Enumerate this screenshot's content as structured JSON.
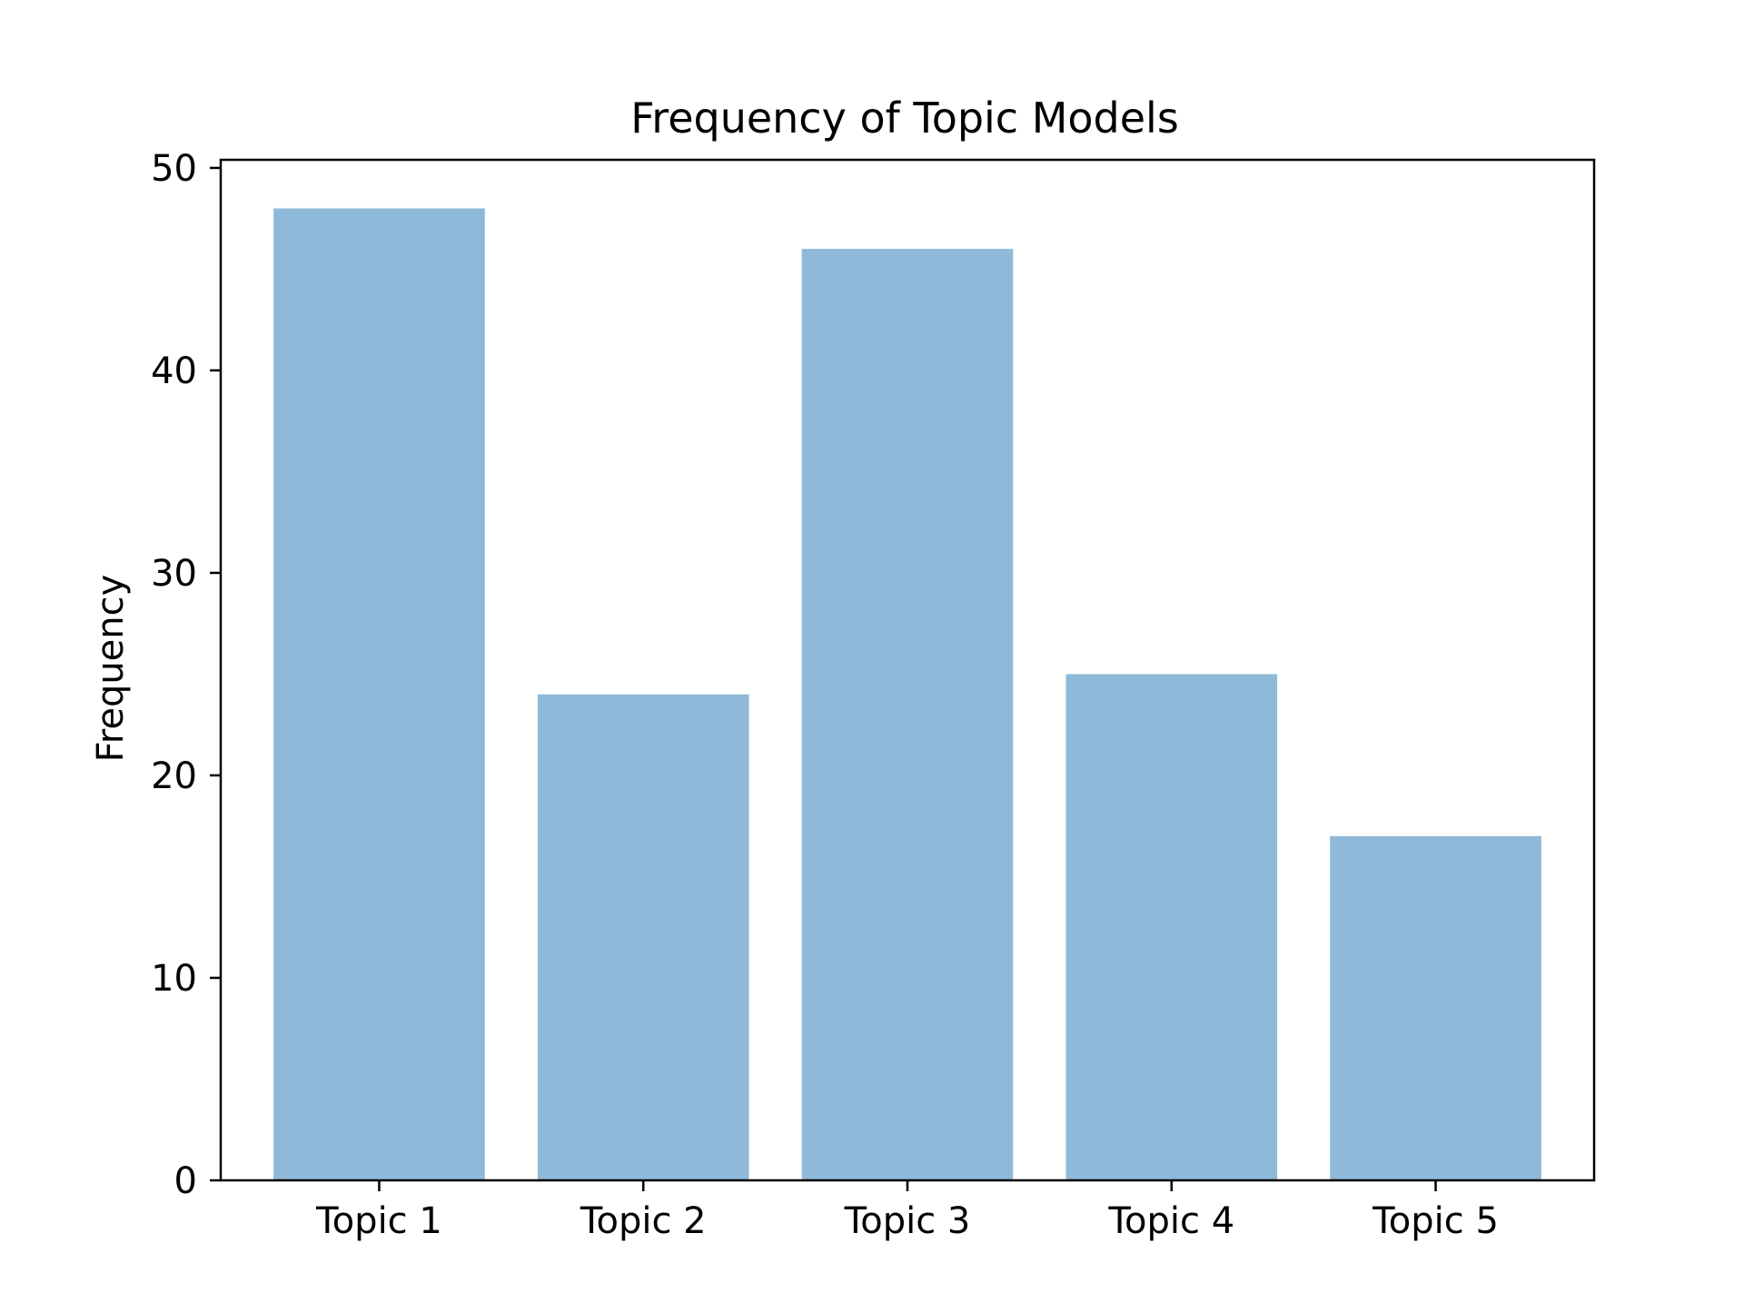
{
  "chart_data": {
    "type": "bar",
    "title": "Frequency of Topic Models",
    "xlabel": "",
    "ylabel": "Frequency",
    "categories": [
      "Topic 1",
      "Topic 2",
      "Topic 3",
      "Topic 4",
      "Topic 5"
    ],
    "values": [
      48,
      24,
      46,
      25,
      17
    ],
    "ylim": [
      0,
      50
    ],
    "yticks": [
      0,
      10,
      20,
      30,
      40,
      50
    ],
    "ytick_labels": [
      "0",
      "10",
      "20",
      "30",
      "40",
      "50"
    ],
    "grid": false,
    "legend": "none",
    "bar_color": "#8fb9d9"
  }
}
